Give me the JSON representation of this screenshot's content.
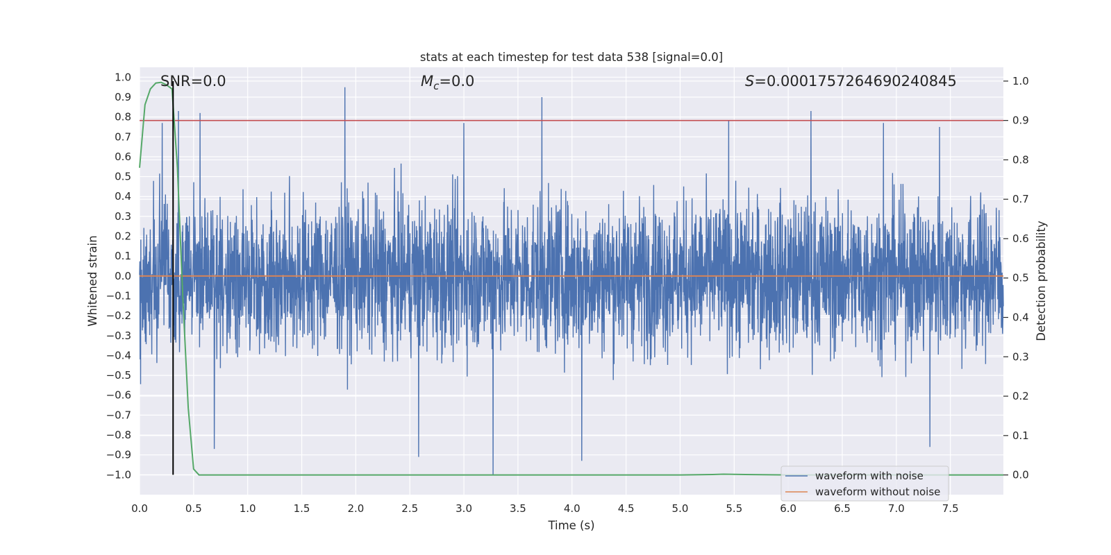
{
  "chart_data": {
    "type": "line",
    "title": "stats at each timestep for test data 538 [signal=0.0]",
    "xlabel": "Time (s)",
    "ylabel_left": "Whitened strain",
    "ylabel_right": "Detection probability",
    "xlim": [
      0.0,
      7.99
    ],
    "ylim_left": [
      -1.1,
      1.05
    ],
    "ylim_right": [
      -0.05,
      1.035
    ],
    "x_ticks": [
      0.0,
      0.5,
      1.0,
      1.5,
      2.0,
      2.5,
      3.0,
      3.5,
      4.0,
      4.5,
      5.0,
      5.5,
      6.0,
      6.5,
      7.0,
      7.5
    ],
    "x_tick_labels": [
      "0.0",
      "0.5",
      "1.0",
      "1.5",
      "2.0",
      "2.5",
      "3.0",
      "3.5",
      "4.0",
      "4.5",
      "5.0",
      "5.5",
      "6.0",
      "6.5",
      "7.0",
      "7.5"
    ],
    "y_left_ticks": [
      1.0,
      0.9,
      0.8,
      0.7,
      0.6,
      0.5,
      0.4,
      0.3,
      0.2,
      0.1,
      0.0,
      -0.1,
      -0.2,
      -0.3,
      -0.4,
      -0.5,
      -0.6,
      -0.7,
      -0.8,
      -0.9,
      -1.0
    ],
    "y_left_tick_labels": [
      "1.0",
      "0.9",
      "0.8",
      "0.7",
      "0.6",
      "0.5",
      "0.4",
      "0.3",
      "0.2",
      "0.1",
      "0.0",
      "−0.1",
      "−0.2",
      "−0.3",
      "−0.4",
      "−0.5",
      "−0.6",
      "−0.7",
      "−0.8",
      "−0.9",
      "−1.0"
    ],
    "y_right_ticks": [
      1.0,
      0.9,
      0.8,
      0.7,
      0.6,
      0.5,
      0.4,
      0.3,
      0.2,
      0.1,
      0.0
    ],
    "y_right_tick_labels": [
      "1.0",
      "0.9",
      "0.8",
      "0.7",
      "0.6",
      "0.5",
      "0.4",
      "0.3",
      "0.2",
      "0.1",
      "0.0"
    ],
    "annotations": {
      "snr": "SNR=0.0",
      "mc_symbol": "M",
      "mc_subscript": "c",
      "mc_value": "=0.0",
      "s_symbol": "S",
      "s_value": "=0.0001757264690240845"
    },
    "series": [
      {
        "name": "waveform with noise",
        "axis": "left",
        "color": "#4c72b0",
        "kind": "noise",
        "amplitude_typical": 0.35,
        "peaks": [
          {
            "x": 0.21,
            "y": 0.77
          },
          {
            "x": 0.36,
            "y": 0.83
          },
          {
            "x": 0.56,
            "y": 0.82
          },
          {
            "x": 0.69,
            "y": -0.87
          },
          {
            "x": 1.9,
            "y": 0.95
          },
          {
            "x": 2.58,
            "y": -0.91
          },
          {
            "x": 3.0,
            "y": 0.77
          },
          {
            "x": 3.27,
            "y": -1.0
          },
          {
            "x": 3.72,
            "y": 0.9
          },
          {
            "x": 4.09,
            "y": -0.93
          },
          {
            "x": 5.45,
            "y": 0.78
          },
          {
            "x": 6.21,
            "y": 0.83
          },
          {
            "x": 6.88,
            "y": 0.77
          },
          {
            "x": 7.31,
            "y": -0.86
          },
          {
            "x": 7.4,
            "y": 0.75
          }
        ]
      },
      {
        "name": "waveform without noise",
        "axis": "left",
        "color": "#dd8452",
        "x": [
          0.0,
          7.99
        ],
        "y": [
          0.0,
          0.0
        ]
      },
      {
        "name": "detection probability",
        "axis": "right",
        "color": "#55a868",
        "x": [
          0.0,
          0.05,
          0.1,
          0.15,
          0.2,
          0.25,
          0.3,
          0.35,
          0.4,
          0.45,
          0.5,
          0.55,
          1.0,
          2.0,
          3.0,
          4.0,
          5.0,
          5.3,
          5.4,
          5.6,
          6.0,
          7.0,
          7.99
        ],
        "y": [
          0.78,
          0.94,
          0.98,
          0.995,
          0.997,
          0.99,
          0.98,
          0.78,
          0.45,
          0.17,
          0.015,
          0.0,
          0.0,
          0.0,
          0.0,
          0.0,
          0.0,
          0.001,
          0.002,
          0.001,
          0.0,
          0.0,
          0.0
        ]
      }
    ],
    "threshold": {
      "axis": "right",
      "value": 0.9,
      "color": "#c44e52"
    },
    "marker_line": {
      "x": 0.31,
      "y_from": -1.0,
      "y_to": 0.98,
      "color": "#000000"
    },
    "legend": {
      "position": "lower-right",
      "entries": [
        {
          "label": "waveform with noise",
          "color": "#4c72b0"
        },
        {
          "label": "waveform without noise",
          "color": "#dd8452"
        }
      ]
    },
    "grid": true,
    "colors": {
      "axes_bg": "#eaeaf2",
      "grid": "#ffffff",
      "text": "#262626"
    }
  }
}
